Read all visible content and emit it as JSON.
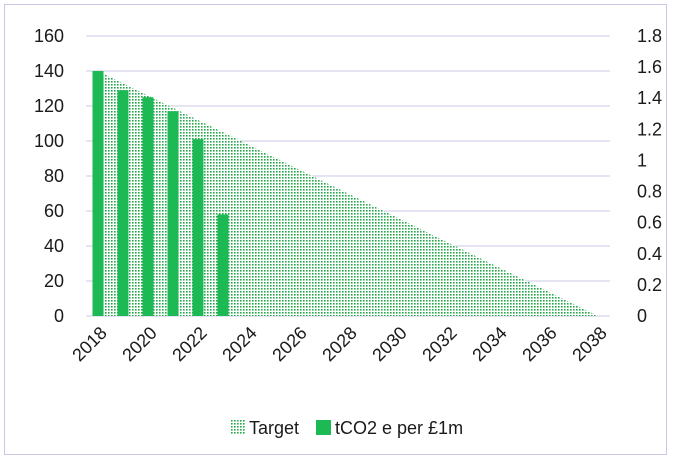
{
  "chart_data": {
    "type": "bar",
    "x_ticks": [
      "2018",
      "2020",
      "2022",
      "2024",
      "2026",
      "2028",
      "2030",
      "2032",
      "2034",
      "2036",
      "2038"
    ],
    "y_left": {
      "ticks": [
        "0",
        "20",
        "40",
        "60",
        "80",
        "100",
        "120",
        "140",
        "160"
      ],
      "ylim": [
        0,
        160
      ]
    },
    "y_right": {
      "ticks": [
        "0",
        "0.2",
        "0.4",
        "0.6",
        "0.8",
        "1",
        "1.2",
        "1.4",
        "1.6",
        "1.8"
      ],
      "ylim": [
        0,
        1.8
      ]
    },
    "grid": true,
    "legend_position": "bottom",
    "series": [
      {
        "name": "Target",
        "kind": "area",
        "axis": "left",
        "pattern": "dotted",
        "x": [
          2018,
          2038
        ],
        "values": [
          140,
          0
        ],
        "color": "#22a84a"
      },
      {
        "name": "tCO2 e per £1m",
        "kind": "bar",
        "axis": "left",
        "x": [
          2018,
          2019,
          2020,
          2021,
          2022,
          2023
        ],
        "values": [
          140,
          129,
          125,
          117,
          101,
          58
        ],
        "color": "#1db954"
      }
    ]
  }
}
